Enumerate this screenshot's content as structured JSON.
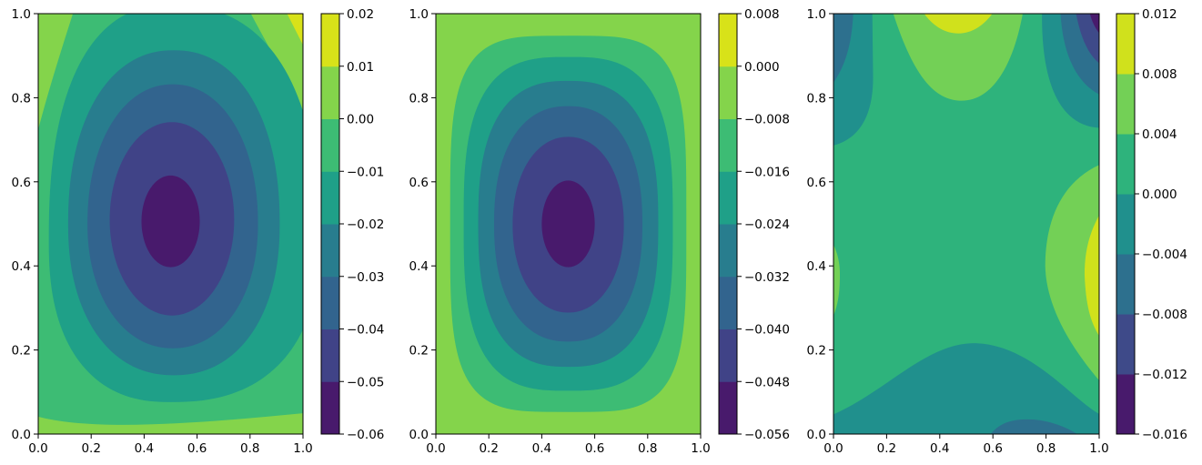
{
  "chart_data": [
    {
      "type": "contour",
      "xlim": [
        0,
        1
      ],
      "ylim": [
        0,
        1
      ],
      "xticks": [
        "0.0",
        "0.2",
        "0.4",
        "0.6",
        "0.8",
        "1.0"
      ],
      "yticks": [
        "0.0",
        "0.2",
        "0.4",
        "0.6",
        "0.8",
        "1.0"
      ],
      "levels": [
        -0.06,
        -0.05,
        -0.04,
        -0.03,
        -0.02,
        -0.01,
        0.0,
        0.01,
        0.02
      ],
      "colorbar_ticks": [
        "−0.06",
        "−0.05",
        "−0.04",
        "−0.03",
        "−0.02",
        "−0.01",
        "0.00",
        "0.01",
        "0.02"
      ],
      "colors": [
        "#481a6c",
        "#404387",
        "#32648e",
        "#287d8e",
        "#1fa088",
        "#3dbc74",
        "#84d44b",
        "#d8e219"
      ],
      "colormap": "viridis",
      "extremum": {
        "type": "minimum",
        "x": 0.5,
        "y": 0.5,
        "band": "-0.06 to -0.05"
      }
    },
    {
      "type": "contour",
      "xlim": [
        0,
        1
      ],
      "ylim": [
        0,
        1
      ],
      "xticks": [
        "0.0",
        "0.2",
        "0.4",
        "0.6",
        "0.8",
        "1.0"
      ],
      "yticks": [
        "0.0",
        "0.2",
        "0.4",
        "0.6",
        "0.8",
        "1.0"
      ],
      "levels": [
        -0.056,
        -0.048,
        -0.04,
        -0.032,
        -0.024,
        -0.016,
        -0.008,
        0.0,
        0.008
      ],
      "colorbar_ticks": [
        "−0.056",
        "−0.048",
        "−0.040",
        "−0.032",
        "−0.024",
        "−0.016",
        "−0.008",
        "0.000",
        "0.008"
      ],
      "colors": [
        "#481a6c",
        "#404387",
        "#32648e",
        "#287d8e",
        "#1fa088",
        "#3dbc74",
        "#84d44b",
        "#d8e219"
      ],
      "colormap": "viridis",
      "extremum": {
        "type": "minimum",
        "x": 0.5,
        "y": 0.5,
        "band": "-0.056 to -0.048"
      }
    },
    {
      "type": "contour",
      "xlim": [
        0,
        1
      ],
      "ylim": [
        0,
        1
      ],
      "xticks": [
        "0.0",
        "0.2",
        "0.4",
        "0.6",
        "0.8",
        "1.0"
      ],
      "yticks": [
        "0.0",
        "0.2",
        "0.4",
        "0.6",
        "0.8",
        "1.0"
      ],
      "levels": [
        -0.016,
        -0.012,
        -0.008,
        -0.004,
        0.0,
        0.004,
        0.008,
        0.012
      ],
      "colorbar_ticks": [
        "−0.016",
        "−0.012",
        "−0.008",
        "−0.004",
        "0.000",
        "0.004",
        "0.008",
        "0.012"
      ],
      "colors": [
        "#481a6c",
        "#3e4a89",
        "#2d708e",
        "#20908d",
        "#2eb37c",
        "#73d056",
        "#d0e11c"
      ],
      "colormap": "viridis"
    }
  ]
}
